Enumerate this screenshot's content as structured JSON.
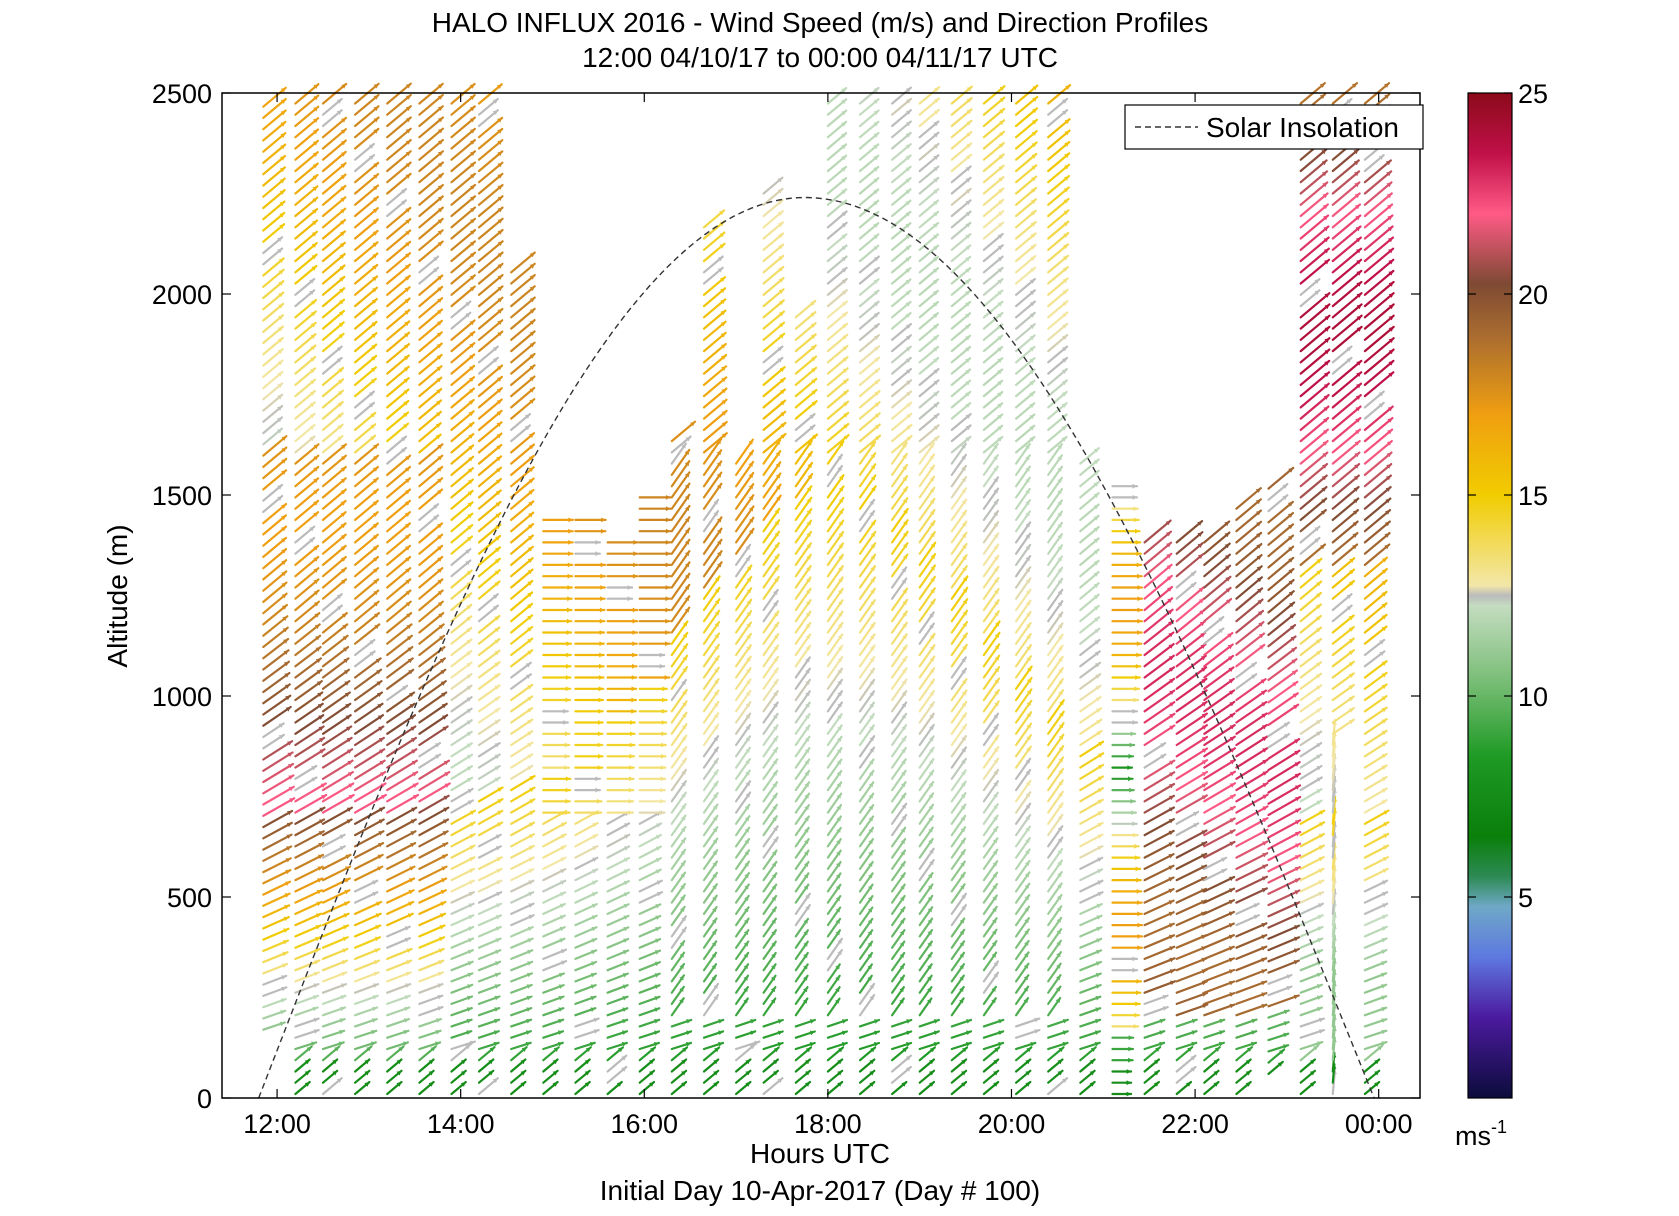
{
  "chart_data": {
    "type": "wind-barb-profile",
    "title": "HALO INFLUX 2016 - Wind Speed (m/s) and Direction Profiles",
    "subtitle": "12:00 04/10/17 to 00:00 04/11/17  UTC",
    "xlabel": "Hours UTC",
    "footer": "Initial Day 10-Apr-2017 (Day # 100)",
    "ylabel": "Altitude (m)",
    "xlim_hours": [
      11.4,
      24.45
    ],
    "ylim": [
      0,
      2500
    ],
    "x_ticks": [
      {
        "hour": 12,
        "label": "12:00"
      },
      {
        "hour": 14,
        "label": "14:00"
      },
      {
        "hour": 16,
        "label": "16:00"
      },
      {
        "hour": 18,
        "label": "18:00"
      },
      {
        "hour": 20,
        "label": "20:00"
      },
      {
        "hour": 22,
        "label": "22:00"
      },
      {
        "hour": 24,
        "label": "00:00"
      }
    ],
    "y_ticks": [
      0,
      500,
      1000,
      1500,
      2000,
      2500
    ],
    "colorbar": {
      "range": [
        0,
        25
      ],
      "ticks": [
        5,
        10,
        15,
        20,
        25
      ],
      "unit_label": "ms",
      "unit_exponent": "-1"
    },
    "legend": {
      "entries": [
        "Solar Insolation"
      ],
      "position": "top-right",
      "style": "dashed"
    },
    "solar_insolation": {
      "sunrise_hour": 11.8,
      "peak_hour": 17.75,
      "sunset_hour": 23.95,
      "peak_altitude_m": 2240
    },
    "profile_columns": [
      {
        "hour": 11.85,
        "top": 2490,
        "low": 170
      },
      {
        "hour": 12.2,
        "top": 2500,
        "low": 0
      },
      {
        "hour": 12.5,
        "top": 2500,
        "low": 0
      },
      {
        "hour": 12.85,
        "top": 2500,
        "low": 0
      },
      {
        "hour": 13.2,
        "top": 2500,
        "low": 0
      },
      {
        "hour": 13.55,
        "top": 2500,
        "low": 0
      },
      {
        "hour": 13.9,
        "top": 2500,
        "low": 0
      },
      {
        "hour": 14.2,
        "top": 2500,
        "low": 0
      },
      {
        "hour": 14.55,
        "top": 2080,
        "low": 0
      },
      {
        "hour": 14.9,
        "top": 1450,
        "low": 0
      },
      {
        "hour": 15.25,
        "top": 1450,
        "low": 0
      },
      {
        "hour": 15.6,
        "top": 1400,
        "low": 0
      },
      {
        "hour": 15.95,
        "top": 1520,
        "low": 0
      },
      {
        "hour": 16.3,
        "top": 1640,
        "low": 0
      },
      {
        "hour": 16.65,
        "top": 2180,
        "low": 0
      },
      {
        "hour": 17.0,
        "top": 1600,
        "low": 0
      },
      {
        "hour": 17.3,
        "top": 2250,
        "low": 0
      },
      {
        "hour": 17.65,
        "top": 1950,
        "low": 0
      },
      {
        "hour": 18.0,
        "top": 2500,
        "low": 0
      },
      {
        "hour": 18.35,
        "top": 2500,
        "low": 0
      },
      {
        "hour": 18.7,
        "top": 2500,
        "low": 0
      },
      {
        "hour": 19.0,
        "top": 2500,
        "low": 0
      },
      {
        "hour": 19.35,
        "top": 2500,
        "low": 0
      },
      {
        "hour": 19.7,
        "top": 2500,
        "low": 0
      },
      {
        "hour": 20.05,
        "top": 2500,
        "low": 0
      },
      {
        "hour": 20.4,
        "top": 2500,
        "low": 0
      },
      {
        "hour": 20.75,
        "top": 1580,
        "low": 0
      },
      {
        "hour": 21.1,
        "top": 1530,
        "low": 0
      },
      {
        "hour": 21.45,
        "top": 1400,
        "low": 0
      },
      {
        "hour": 21.8,
        "top": 1400,
        "low": 0
      },
      {
        "hour": 22.1,
        "top": 1400,
        "low": 0
      },
      {
        "hour": 22.45,
        "top": 1480,
        "low": 0
      },
      {
        "hour": 22.8,
        "top": 1520,
        "low": 60
      },
      {
        "hour": 23.15,
        "top": 2500,
        "low": 0
      },
      {
        "hour": 23.5,
        "top": 2500,
        "low": 0
      },
      {
        "hour": 23.85,
        "top": 2500,
        "low": 0
      }
    ],
    "grid": false
  }
}
